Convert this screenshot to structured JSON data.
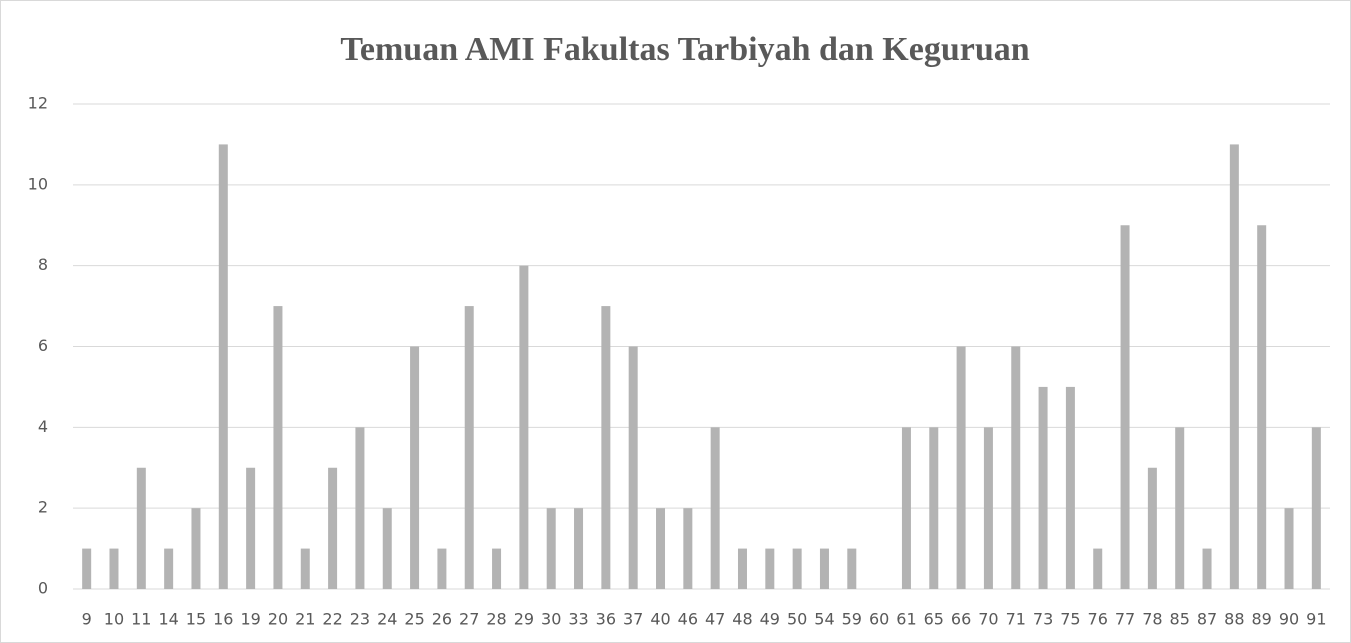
{
  "chart_data": {
    "type": "bar",
    "title": "Temuan AMI Fakultas Tarbiyah dan Keguruan",
    "categories": [
      "9",
      "10",
      "11",
      "14",
      "15",
      "16",
      "19",
      "20",
      "21",
      "22",
      "23",
      "24",
      "25",
      "26",
      "27",
      "28",
      "29",
      "30",
      "33",
      "36",
      "37",
      "40",
      "46",
      "47",
      "48",
      "49",
      "50",
      "54",
      "59",
      "60",
      "61",
      "65",
      "66",
      "70",
      "71",
      "73",
      "75",
      "76",
      "77",
      "78",
      "85",
      "87",
      "88",
      "89",
      "90",
      "91"
    ],
    "values": [
      1,
      1,
      3,
      1,
      2,
      11,
      3,
      7,
      1,
      3,
      4,
      2,
      6,
      1,
      7,
      1,
      8,
      2,
      2,
      7,
      6,
      2,
      2,
      4,
      1,
      1,
      1,
      1,
      1,
      0,
      4,
      4,
      6,
      4,
      6,
      5,
      5,
      1,
      9,
      3,
      4,
      1,
      11,
      9,
      2,
      4
    ],
    "color": "#b3b3b3",
    "ylim": [
      0,
      12
    ],
    "yticks": [
      0,
      2,
      4,
      6,
      8,
      10,
      12
    ],
    "grid": true
  }
}
